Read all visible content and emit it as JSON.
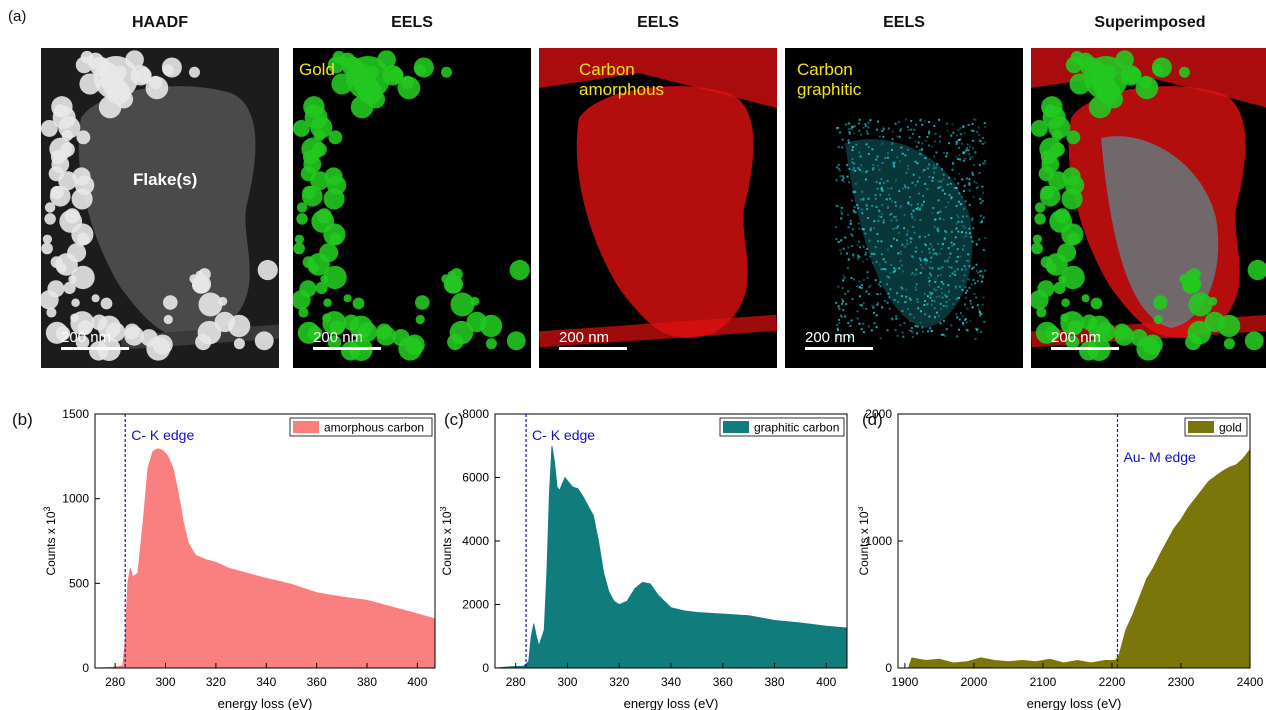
{
  "panel_labels": [
    "(a)",
    "(b)",
    "(c)",
    "(d)"
  ],
  "maps": [
    {
      "title": "HAADF",
      "label": "Flake(s)",
      "scale": "200 nm",
      "kind": "haadf"
    },
    {
      "title": "EELS",
      "label": "Gold",
      "scale": "200 nm",
      "kind": "gold"
    },
    {
      "title": "EELS",
      "label": "Carbon\namorphous",
      "scale": "200 nm",
      "kind": "amorphous"
    },
    {
      "title": "EELS",
      "label": "Carbon\ngraphitic",
      "scale": "200 nm",
      "kind": "graphitic"
    },
    {
      "title": "Superimposed",
      "label": "",
      "scale": "200 nm",
      "kind": "super"
    }
  ],
  "colors": {
    "amorphous": "#fa7f7f",
    "graphitic": "#117c7c",
    "gold": "#7b7609",
    "edge_line": "#1010c8",
    "gold_map": "#22c820",
    "amorphous_map": "#e01010",
    "graphitic_map": "#22d8e0"
  },
  "chart_data": [
    {
      "type": "area",
      "panel": "(b)",
      "xlabel": "energy loss (eV)",
      "ylabel": "Counts x 10",
      "ylabel_sup": "3",
      "xlim": [
        272,
        407
      ],
      "ylim": [
        0,
        1500
      ],
      "xticks": [
        280,
        300,
        320,
        340,
        360,
        380,
        400
      ],
      "yticks": [
        0,
        500,
        1000,
        1500
      ],
      "legend": "top-right",
      "edge": {
        "x": 284,
        "label": "C- K edge"
      },
      "series": [
        {
          "name": "amorphous carbon",
          "points": [
            [
              272,
              0
            ],
            [
              279,
              5
            ],
            [
              283,
              12
            ],
            [
              284,
              160
            ],
            [
              285,
              500
            ],
            [
              286,
              590
            ],
            [
              287,
              540
            ],
            [
              289,
              560
            ],
            [
              291,
              850
            ],
            [
              293,
              1180
            ],
            [
              295,
              1280
            ],
            [
              297,
              1295
            ],
            [
              299,
              1285
            ],
            [
              301,
              1250
            ],
            [
              303,
              1180
            ],
            [
              305,
              1040
            ],
            [
              307,
              870
            ],
            [
              309,
              740
            ],
            [
              312,
              665
            ],
            [
              316,
              640
            ],
            [
              320,
              625
            ],
            [
              325,
              590
            ],
            [
              330,
              570
            ],
            [
              340,
              530
            ],
            [
              350,
              495
            ],
            [
              360,
              445
            ],
            [
              370,
              420
            ],
            [
              380,
              400
            ],
            [
              390,
              360
            ],
            [
              400,
              320
            ],
            [
              407,
              290
            ]
          ]
        }
      ]
    },
    {
      "type": "area",
      "panel": "(c)",
      "xlabel": "energy loss (eV)",
      "ylabel": "Counts x 10",
      "ylabel_sup": "3",
      "xlim": [
        272,
        408
      ],
      "ylim": [
        0,
        8000
      ],
      "xticks": [
        280,
        300,
        320,
        340,
        360,
        380,
        400
      ],
      "yticks": [
        0,
        2000,
        4000,
        6000,
        8000
      ],
      "legend": "top-right",
      "edge": {
        "x": 284,
        "label": "C- K edge"
      },
      "series": [
        {
          "name": "graphitic carbon",
          "points": [
            [
              272,
              0
            ],
            [
              278,
              40
            ],
            [
              283,
              60
            ],
            [
              285,
              200
            ],
            [
              286,
              1000
            ],
            [
              287,
              1400
            ],
            [
              288,
              1000
            ],
            [
              289,
              700
            ],
            [
              291,
              1200
            ],
            [
              292,
              3000
            ],
            [
              293,
              5500
            ],
            [
              294,
              7000
            ],
            [
              295,
              6500
            ],
            [
              296,
              5700
            ],
            [
              297,
              5600
            ],
            [
              298,
              5800
            ],
            [
              299,
              6000
            ],
            [
              300,
              5900
            ],
            [
              302,
              5700
            ],
            [
              304,
              5650
            ],
            [
              306,
              5400
            ],
            [
              308,
              5100
            ],
            [
              310,
              4800
            ],
            [
              312,
              4000
            ],
            [
              314,
              3000
            ],
            [
              316,
              2400
            ],
            [
              318,
              2100
            ],
            [
              320,
              2000
            ],
            [
              323,
              2100
            ],
            [
              326,
              2500
            ],
            [
              329,
              2700
            ],
            [
              332,
              2650
            ],
            [
              335,
              2300
            ],
            [
              340,
              1900
            ],
            [
              345,
              1800
            ],
            [
              350,
              1750
            ],
            [
              360,
              1700
            ],
            [
              370,
              1650
            ],
            [
              380,
              1500
            ],
            [
              390,
              1420
            ],
            [
              400,
              1320
            ],
            [
              408,
              1260
            ]
          ]
        }
      ]
    },
    {
      "type": "area",
      "panel": "(d)",
      "xlabel": "energy loss (eV)",
      "ylabel": "Counts x 10",
      "ylabel_sup": "3",
      "xlim": [
        1890,
        2400
      ],
      "ylim": [
        0,
        2000
      ],
      "xticks": [
        1900,
        2000,
        2100,
        2200,
        2300,
        2400
      ],
      "yticks": [
        0,
        1000,
        2000
      ],
      "legend": "top-right",
      "edge": {
        "x": 2208,
        "label": "Au- M edge"
      },
      "series": [
        {
          "name": "gold",
          "points": [
            [
              1905,
              0
            ],
            [
              1910,
              80
            ],
            [
              1930,
              60
            ],
            [
              1950,
              70
            ],
            [
              1970,
              40
            ],
            [
              1990,
              50
            ],
            [
              2010,
              80
            ],
            [
              2030,
              60
            ],
            [
              2050,
              50
            ],
            [
              2070,
              60
            ],
            [
              2090,
              50
            ],
            [
              2110,
              70
            ],
            [
              2130,
              40
            ],
            [
              2150,
              60
            ],
            [
              2170,
              40
            ],
            [
              2190,
              60
            ],
            [
              2205,
              60
            ],
            [
              2210,
              100
            ],
            [
              2220,
              300
            ],
            [
              2230,
              420
            ],
            [
              2240,
              560
            ],
            [
              2250,
              700
            ],
            [
              2260,
              790
            ],
            [
              2270,
              900
            ],
            [
              2280,
              1000
            ],
            [
              2290,
              1100
            ],
            [
              2300,
              1170
            ],
            [
              2310,
              1260
            ],
            [
              2320,
              1330
            ],
            [
              2330,
              1400
            ],
            [
              2340,
              1470
            ],
            [
              2350,
              1510
            ],
            [
              2360,
              1550
            ],
            [
              2370,
              1580
            ],
            [
              2380,
              1600
            ],
            [
              2390,
              1650
            ],
            [
              2400,
              1720
            ]
          ]
        }
      ]
    }
  ]
}
